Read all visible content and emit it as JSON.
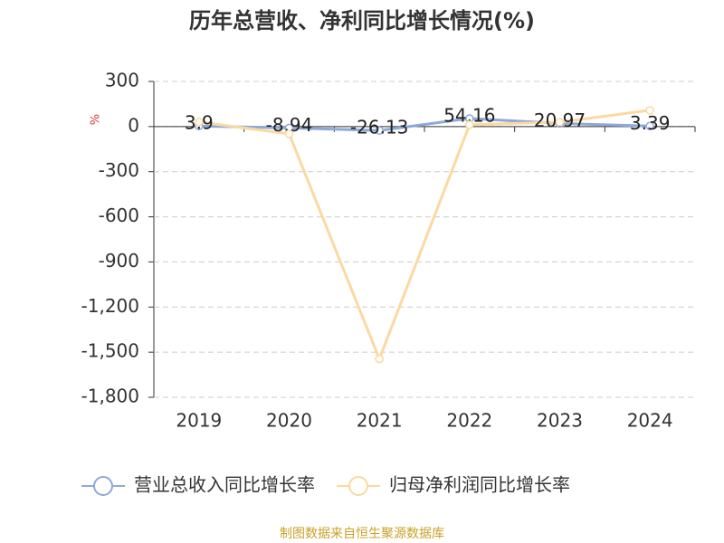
{
  "chart_data": {
    "type": "line",
    "title": "历年总营收、净利同比增长情况(%)",
    "y_unit": "%",
    "categories": [
      "2019",
      "2020",
      "2021",
      "2022",
      "2023",
      "2024"
    ],
    "series": [
      {
        "name": "营业总收入同比增长率",
        "color": "#8ea9d9",
        "values": [
          3.9,
          -8.94,
          -26.13,
          54.16,
          20.97,
          3.39
        ],
        "show_labels": true
      },
      {
        "name": "归母净利润同比增长率",
        "color": "#fbd9a0",
        "values": [
          30,
          -48,
          -1545,
          12,
          30,
          108
        ],
        "show_labels": false
      }
    ],
    "ylim": [
      -1800,
      300
    ],
    "yticks": [
      300,
      0,
      -300,
      -600,
      -900,
      {
        "value": -1200,
        "label": "-1,200"
      },
      {
        "value": -1500,
        "label": "-1,500"
      },
      {
        "value": -1800,
        "label": "-1,800"
      }
    ],
    "grid": true,
    "legend": "bottom",
    "source": "制图数据来自恒生聚源数据库"
  }
}
